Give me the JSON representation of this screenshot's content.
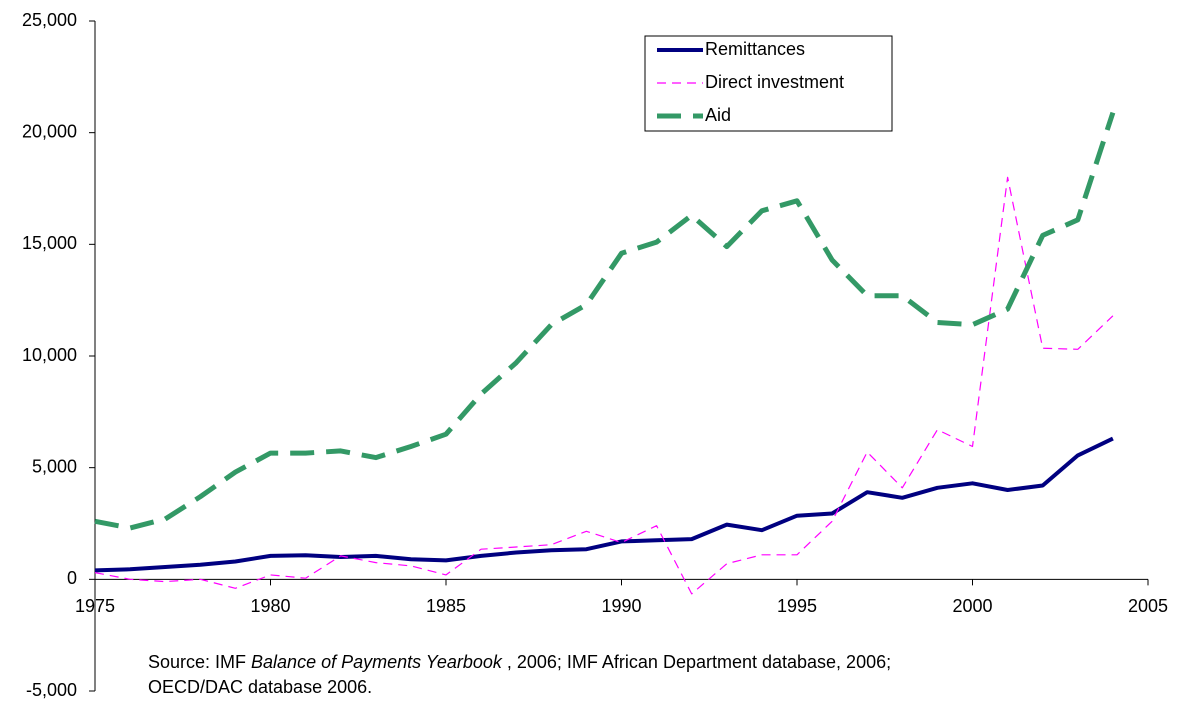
{
  "chart_data": {
    "type": "line",
    "x": [
      1975,
      1976,
      1977,
      1978,
      1979,
      1980,
      1981,
      1982,
      1983,
      1984,
      1985,
      1986,
      1987,
      1988,
      1989,
      1990,
      1991,
      1992,
      1993,
      1994,
      1995,
      1996,
      1997,
      1998,
      1999,
      2000,
      2001,
      2002,
      2003,
      2004
    ],
    "series": [
      {
        "name": "Remittances",
        "color": "#000080",
        "dash": "solid",
        "width": 4,
        "values": [
          400,
          450,
          550,
          650,
          800,
          1050,
          1080,
          1000,
          1050,
          900,
          850,
          1050,
          1200,
          1300,
          1350,
          1700,
          1750,
          1800,
          2450,
          2200,
          2850,
          2950,
          3900,
          3650,
          4100,
          4300,
          4000,
          4200,
          5550,
          6300
        ]
      },
      {
        "name": "Direct investment",
        "color": "#ff00ff",
        "dash": "dashed",
        "width": 1.2,
        "values": [
          300,
          0,
          -100,
          0,
          -400,
          200,
          50,
          1050,
          750,
          600,
          200,
          1350,
          1450,
          1550,
          2150,
          1650,
          2400,
          -650,
          700,
          1100,
          1100,
          2600,
          5700,
          4100,
          6700,
          5950,
          18000,
          10350,
          10300,
          11800
        ]
      },
      {
        "name": "Aid",
        "color": "#339966",
        "dash": "long-dashed",
        "width": 5,
        "values": [
          2600,
          2300,
          2700,
          3700,
          4800,
          5650,
          5650,
          5750,
          5450,
          5950,
          6500,
          8300,
          9700,
          11400,
          12300,
          14600,
          15100,
          16300,
          14900,
          16500,
          16950,
          14300,
          12700,
          12700,
          11500,
          11400,
          12100,
          15400,
          16100,
          20900
        ]
      }
    ],
    "xlim": [
      1975,
      2005
    ],
    "xticks": [
      1975,
      1980,
      1985,
      1990,
      1995,
      2000,
      2005
    ],
    "ylim": [
      -5000,
      25000
    ],
    "yticks": [
      {
        "value": -5000,
        "label": "-5,000"
      },
      0,
      {
        "value": 5000,
        "label": "5,000"
      },
      {
        "value": 10000,
        "label": "10,000"
      },
      {
        "value": 15000,
        "label": "15,000"
      },
      {
        "value": 20000,
        "label": "20,000"
      },
      {
        "value": 25000,
        "label": "25,000"
      }
    ],
    "grid": false,
    "legend": "top-right",
    "annotation": [
      "Source: IMF ",
      "Balance of Payments Yearbook",
      " , 2006; IMF African Department database, 2006;",
      "OECD/DAC database 2006."
    ]
  }
}
